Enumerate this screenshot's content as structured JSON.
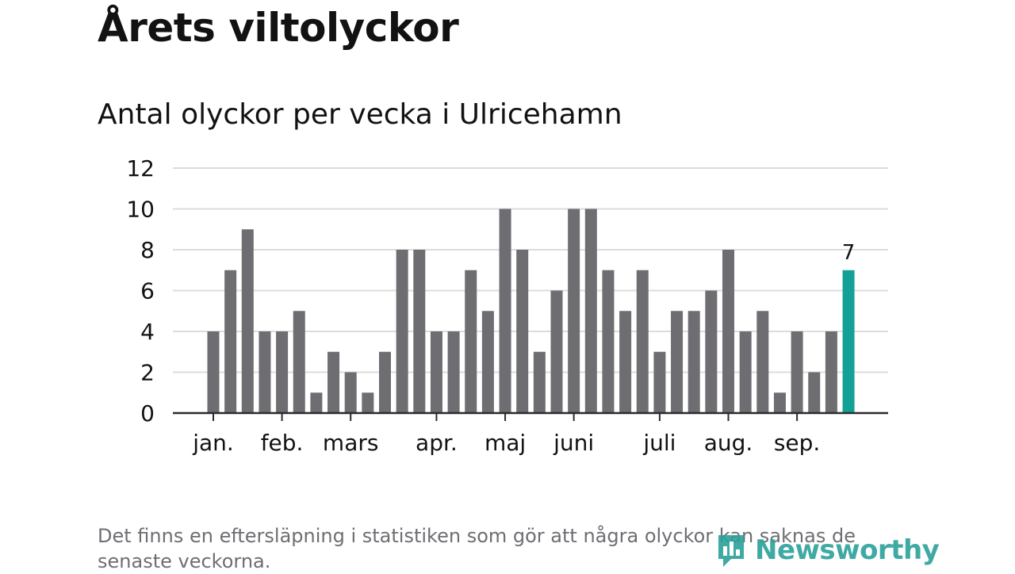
{
  "header": {
    "title": "Årets viltolyckor",
    "subtitle": "Antal olyckor per vecka i Ulricehamn"
  },
  "footnote": "Det finns en eftersläpning i statistiken som gör att några olyckor kan saknas de senaste veckorna.",
  "brand": {
    "name": "Newsworthy",
    "color": "#2ba09a"
  },
  "chart_data": {
    "type": "bar",
    "values": [
      4,
      7,
      9,
      4,
      4,
      5,
      1,
      3,
      2,
      1,
      3,
      8,
      8,
      4,
      4,
      7,
      5,
      10,
      8,
      3,
      6,
      10,
      10,
      7,
      5,
      7,
      3,
      5,
      5,
      6,
      8,
      4,
      5,
      1,
      4,
      2,
      4,
      7
    ],
    "month_labels": [
      {
        "label": "jan.",
        "at_index": 0
      },
      {
        "label": "feb.",
        "at_index": 4
      },
      {
        "label": "mars",
        "at_index": 8
      },
      {
        "label": "apr.",
        "at_index": 13
      },
      {
        "label": "maj",
        "at_index": 17
      },
      {
        "label": "juni",
        "at_index": 21
      },
      {
        "label": "juli",
        "at_index": 26
      },
      {
        "label": "aug.",
        "at_index": 30
      },
      {
        "label": "sep.",
        "at_index": 34
      }
    ],
    "ylim": [
      0,
      12
    ],
    "yticks": [
      0,
      2,
      4,
      6,
      8,
      10,
      12
    ],
    "highlight": {
      "index": 37,
      "label": "7"
    },
    "grid": true,
    "colors": {
      "bar": "#6e6d72",
      "highlight": "#13a197",
      "grid": "#dcdcdc",
      "axis": "#2b2b2b"
    }
  }
}
